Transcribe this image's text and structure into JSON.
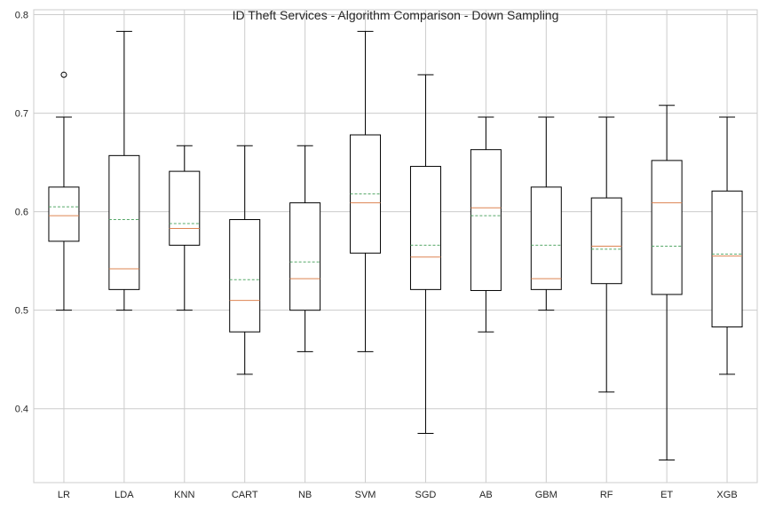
{
  "chart_data": {
    "type": "boxplot",
    "title": "ID Theft Services - Algorithm Comparison - Down Sampling",
    "xlabel": "",
    "ylabel": "",
    "ylim": [
      0.325,
      0.805
    ],
    "yticks": [
      "0.4",
      "0.5",
      "0.6",
      "0.7",
      "0.8"
    ],
    "grid": true,
    "colors": {
      "box": "#000000",
      "median": "#dd8452",
      "mean": "#55a868",
      "grid": "#cccccc",
      "axes_edge": "#cccccc"
    },
    "categories": [
      "LR",
      "LDA",
      "KNN",
      "CART",
      "NB",
      "SVM",
      "SGD",
      "AB",
      "GBM",
      "RF",
      "ET",
      "XGB"
    ],
    "boxes": [
      {
        "label": "LR",
        "whislo": 0.5,
        "q1": 0.57,
        "med": 0.596,
        "mean": 0.605,
        "q3": 0.625,
        "whishi": 0.696,
        "fliers": [
          0.739
        ]
      },
      {
        "label": "LDA",
        "whislo": 0.5,
        "q1": 0.521,
        "med": 0.542,
        "mean": 0.592,
        "q3": 0.657,
        "whishi": 0.783,
        "fliers": []
      },
      {
        "label": "KNN",
        "whislo": 0.5,
        "q1": 0.566,
        "med": 0.583,
        "mean": 0.588,
        "q3": 0.641,
        "whishi": 0.667,
        "fliers": []
      },
      {
        "label": "CART",
        "whislo": 0.435,
        "q1": 0.478,
        "med": 0.51,
        "mean": 0.531,
        "q3": 0.592,
        "whishi": 0.667,
        "fliers": []
      },
      {
        "label": "NB",
        "whislo": 0.458,
        "q1": 0.5,
        "med": 0.532,
        "mean": 0.549,
        "q3": 0.609,
        "whishi": 0.667,
        "fliers": []
      },
      {
        "label": "SVM",
        "whislo": 0.458,
        "q1": 0.558,
        "med": 0.609,
        "mean": 0.618,
        "q3": 0.678,
        "whishi": 0.783,
        "fliers": []
      },
      {
        "label": "SGD",
        "whislo": 0.375,
        "q1": 0.521,
        "med": 0.554,
        "mean": 0.566,
        "q3": 0.646,
        "whishi": 0.739,
        "fliers": []
      },
      {
        "label": "AB",
        "whislo": 0.478,
        "q1": 0.52,
        "med": 0.604,
        "mean": 0.596,
        "q3": 0.663,
        "whishi": 0.696,
        "fliers": []
      },
      {
        "label": "GBM",
        "whislo": 0.5,
        "q1": 0.521,
        "med": 0.532,
        "mean": 0.566,
        "q3": 0.625,
        "whishi": 0.696,
        "fliers": []
      },
      {
        "label": "RF",
        "whislo": 0.417,
        "q1": 0.527,
        "med": 0.565,
        "mean": 0.562,
        "q3": 0.614,
        "whishi": 0.696,
        "fliers": []
      },
      {
        "label": "ET",
        "whislo": 0.348,
        "q1": 0.516,
        "med": 0.609,
        "mean": 0.565,
        "q3": 0.652,
        "whishi": 0.708,
        "fliers": []
      },
      {
        "label": "XGB",
        "whislo": 0.435,
        "q1": 0.483,
        "med": 0.555,
        "mean": 0.557,
        "q3": 0.621,
        "whishi": 0.696,
        "fliers": []
      }
    ]
  }
}
